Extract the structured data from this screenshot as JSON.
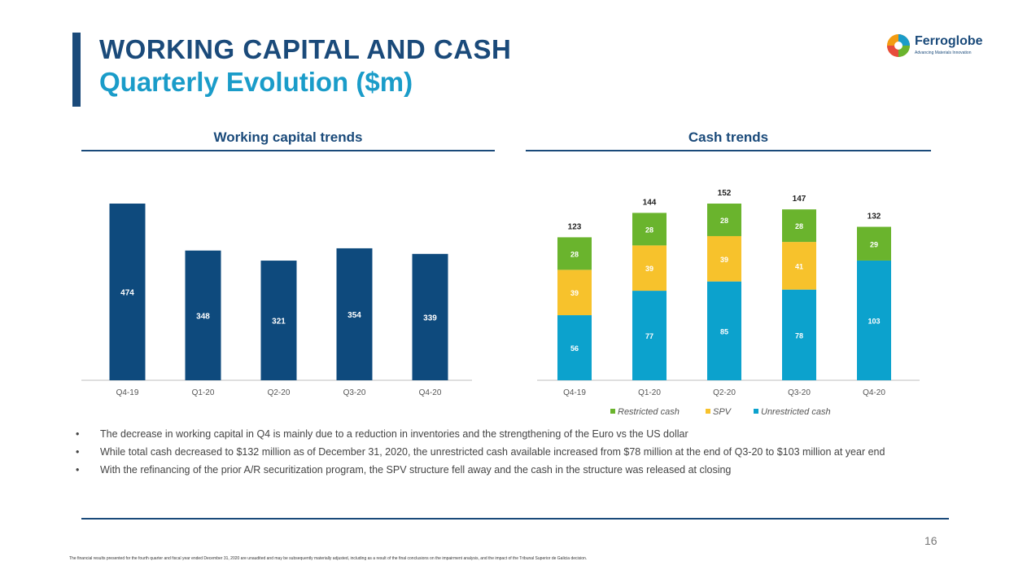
{
  "header": {
    "title": "WORKING CAPITAL AND CASH",
    "subtitle": "Quarterly Evolution ($m)"
  },
  "logo": {
    "name": "Ferroglobe",
    "tagline": "Advancing Materials Innovation",
    "icon": "ferroglobe-logo-icon"
  },
  "colors": {
    "navy": "#1a4a7a",
    "teal": "#1a9cc9",
    "green": "#6ab42d",
    "yellow": "#f7c22c",
    "cyan": "#0ca2cd",
    "wc_bar": "#0e4a7d"
  },
  "chart_data": [
    {
      "type": "bar",
      "title": "Working capital trends",
      "categories": [
        "Q4-19",
        "Q1-20",
        "Q2-20",
        "Q3-20",
        "Q4-20"
      ],
      "values": [
        474,
        348,
        321,
        354,
        339
      ],
      "xlabel": "",
      "ylabel": "",
      "ylim": [
        0,
        474
      ]
    },
    {
      "type": "bar",
      "stacked": true,
      "title": "Cash trends",
      "categories": [
        "Q4-19",
        "Q1-20",
        "Q2-20",
        "Q3-20",
        "Q4-20"
      ],
      "series": [
        {
          "name": "Unrestricted cash",
          "values": [
            56,
            77,
            85,
            78,
            103
          ]
        },
        {
          "name": "SPV",
          "values": [
            39,
            39,
            39,
            41,
            null
          ]
        },
        {
          "name": "Restricted cash",
          "values": [
            28,
            28,
            28,
            28,
            29
          ]
        }
      ],
      "totals": [
        123,
        144,
        152,
        147,
        132
      ],
      "legend_order": [
        "Restricted cash",
        "SPV",
        "Unrestricted cash"
      ],
      "legend_position": "bottom",
      "xlabel": "",
      "ylabel": ""
    }
  ],
  "bullets": [
    "The decrease in working capital in Q4 is mainly due to a reduction in inventories and  the strengthening of the Euro vs the US dollar",
    "While total cash decreased to $132 million as of December 31, 2020, the unrestricted cash available increased from $78 million at the end of Q3-20 to $103 million at year end",
    "With the refinancing of the prior A/R securitization program, the SPV structure fell away and the cash in the structure was released at closing"
  ],
  "page_number": "16",
  "footnote": "The financial results presented for the fourth quarter and fiscal year ended December 31, 2020 are unaudited and may be subsequently materially adjusted, including as a result of the final conclusions on the impairment analysis, and the impact of the Tribunal Superior de Galicia decision."
}
